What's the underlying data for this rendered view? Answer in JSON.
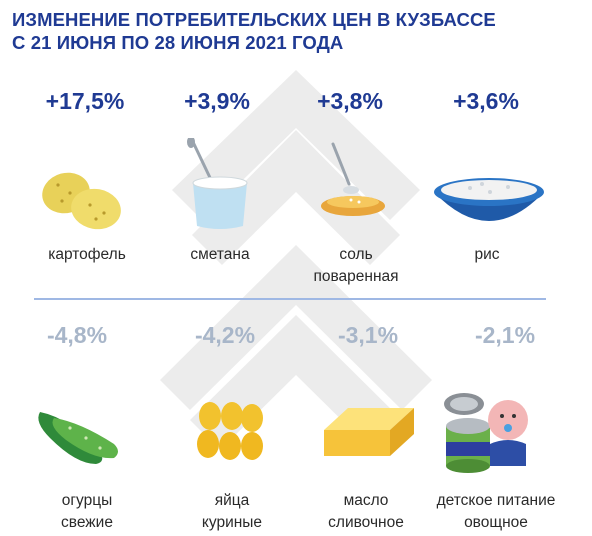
{
  "title": {
    "line1": "ИЗМЕНЕНИЕ ПОТРЕБИТЕЛЬСКИХ ЦЕН В КУЗБАССЕ",
    "line2": "С 21 ИЮНЯ ПО 28 ИЮНЯ 2021 ГОДА"
  },
  "increases": [
    {
      "value": "+17,5%",
      "label1": "картофель",
      "label2": "",
      "icon": "potato-icon"
    },
    {
      "value": "+3,9%",
      "label1": "сметана",
      "label2": "",
      "icon": "sour-cream-icon"
    },
    {
      "value": "+3,8%",
      "label1": "соль",
      "label2": "поваренная",
      "icon": "salt-icon"
    },
    {
      "value": "+3,6%",
      "label1": "рис",
      "label2": "",
      "icon": "rice-icon"
    }
  ],
  "decreases": [
    {
      "value": "-4,8%",
      "label1": "огурцы",
      "label2": "свежие",
      "icon": "cucumber-icon"
    },
    {
      "value": "-4,2%",
      "label1": "яйца",
      "label2": "куриные",
      "icon": "eggs-icon"
    },
    {
      "value": "-3,1%",
      "label1": "масло",
      "label2": "сливочное",
      "icon": "butter-icon"
    },
    {
      "value": "-2,1%",
      "label1": "детское питание",
      "label2": "овощное",
      "icon": "baby-food-icon"
    }
  ],
  "colors": {
    "title": "#1f3a93",
    "increase": "#1f3a93",
    "decrease": "#a8b6c9",
    "divider": "#9fb8e4"
  }
}
